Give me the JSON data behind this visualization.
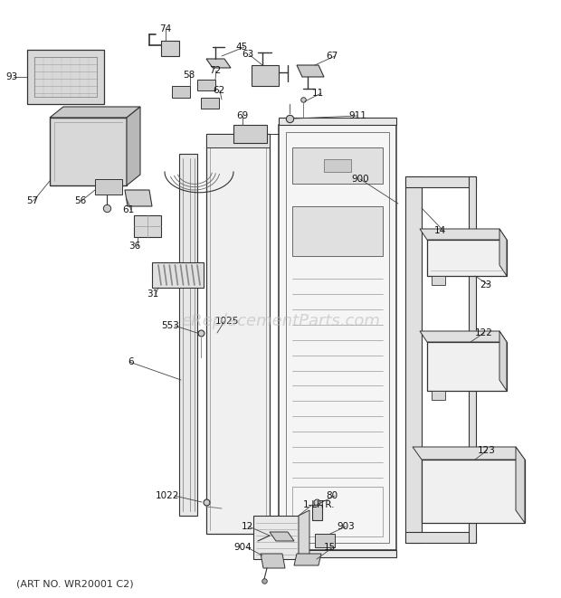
{
  "background_color": "#ffffff",
  "watermark_text": "eReplacementParts.com",
  "watermark_color": "#bbbbbb",
  "watermark_fontsize": 13,
  "footer_text": "(ART NO. WR20001 C2)",
  "footer_fontsize": 8,
  "line_color": "#333333",
  "label_fontsize": 7,
  "label_color": "#111111"
}
